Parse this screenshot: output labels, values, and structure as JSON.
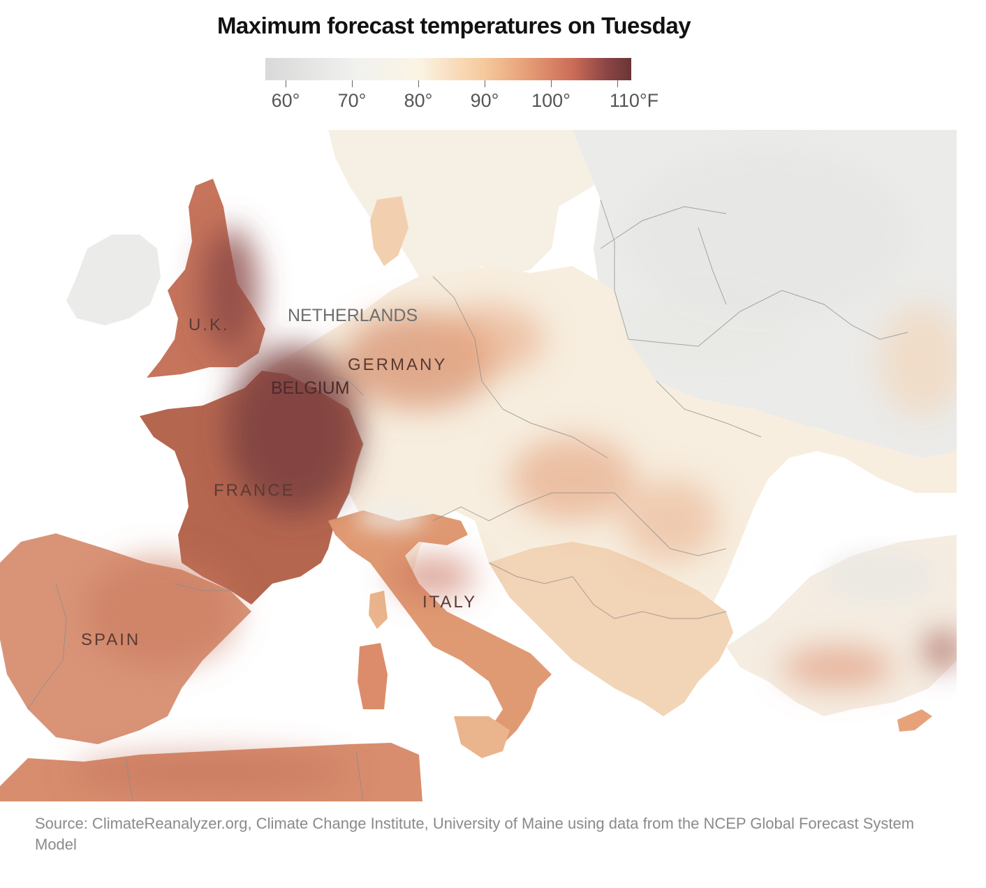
{
  "title": "Maximum forecast temperatures on Tuesday",
  "legend": {
    "labels": [
      "60°",
      "70°",
      "80°",
      "90°",
      "100°",
      "110°F"
    ],
    "values": [
      60,
      70,
      80,
      90,
      100,
      110
    ],
    "min": 58,
    "max": 113,
    "colors": [
      "#d9d9d9",
      "#f1f1ef",
      "#fbf4e4",
      "#f6c89c",
      "#e59d76",
      "#cc6c57",
      "#8d4646",
      "#6a3535"
    ]
  },
  "map": {
    "labels": {
      "uk": "U.K.",
      "netherlands": "NETHERLANDS",
      "germany": "GERMANY",
      "belgium": "BELGIUM",
      "france": "FRANCE",
      "italy": "ITALY",
      "spain": "SPAIN"
    },
    "land_colors": {
      "cool": "#ebebea",
      "mild": "#f8f2e6",
      "warm": "#f3cfa8",
      "hot": "#e09a73",
      "very_hot": "#b86552",
      "extreme": "#844446",
      "sea": "#ffffff",
      "border": "#888888"
    }
  },
  "source": "Source: ClimateReanalyzer.org, Climate Change Institute, University of Maine using data from the NCEP Global Forecast System Model"
}
